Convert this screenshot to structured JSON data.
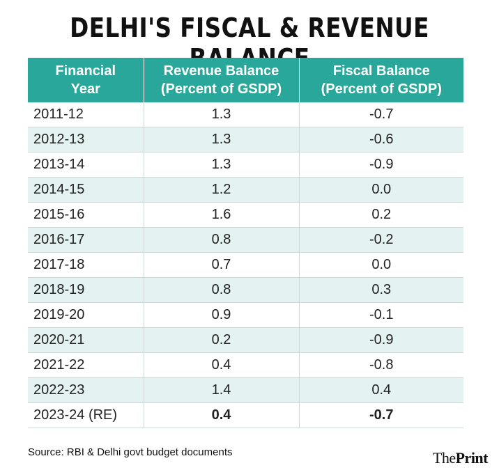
{
  "title": "DELHI'S FISCAL & REVENUE BALANCE",
  "chart_data": {
    "type": "table",
    "title": "DELHI'S FISCAL & REVENUE BALANCE",
    "columns": [
      "Financial Year",
      "Revenue Balance (Percent of GSDP)",
      "Fiscal Balance (Percent of GSDP)"
    ],
    "headers": [
      [
        "Financial",
        "Year"
      ],
      [
        "Revenue Balance",
        "(Percent of GSDP)"
      ],
      [
        "Fiscal Balance",
        "(Percent of GSDP)"
      ]
    ],
    "rows": [
      {
        "year": "2011-12",
        "revenue": "1.3",
        "fiscal": "-0.7"
      },
      {
        "year": "2012-13",
        "revenue": "1.3",
        "fiscal": "-0.6"
      },
      {
        "year": "2013-14",
        "revenue": "1.3",
        "fiscal": "-0.9"
      },
      {
        "year": "2014-15",
        "revenue": "1.2",
        "fiscal": "0.0"
      },
      {
        "year": "2015-16",
        "revenue": "1.6",
        "fiscal": "0.2"
      },
      {
        "year": "2016-17",
        "revenue": "0.8",
        "fiscal": "-0.2"
      },
      {
        "year": "2017-18",
        "revenue": "0.7",
        "fiscal": "0.0"
      },
      {
        "year": "2018-19",
        "revenue": "0.8",
        "fiscal": "0.3"
      },
      {
        "year": "2019-20",
        "revenue": "0.9",
        "fiscal": "-0.1"
      },
      {
        "year": "2020-21",
        "revenue": "0.2",
        "fiscal": "-0.9"
      },
      {
        "year": "2021-22",
        "revenue": "0.4",
        "fiscal": "-0.8"
      },
      {
        "year": "2022-23",
        "revenue": "1.4",
        "fiscal": "0.4"
      },
      {
        "year": "2023-24 (RE)",
        "revenue": "0.4",
        "fiscal": "-0.7",
        "bold": true
      }
    ]
  },
  "source": "Source: RBI & Delhi govt budget documents",
  "logo": {
    "the": "The",
    "print": "Print"
  },
  "colors": {
    "header_bg": "#2aa79b",
    "alt_row_bg": "#e4f3f1"
  }
}
